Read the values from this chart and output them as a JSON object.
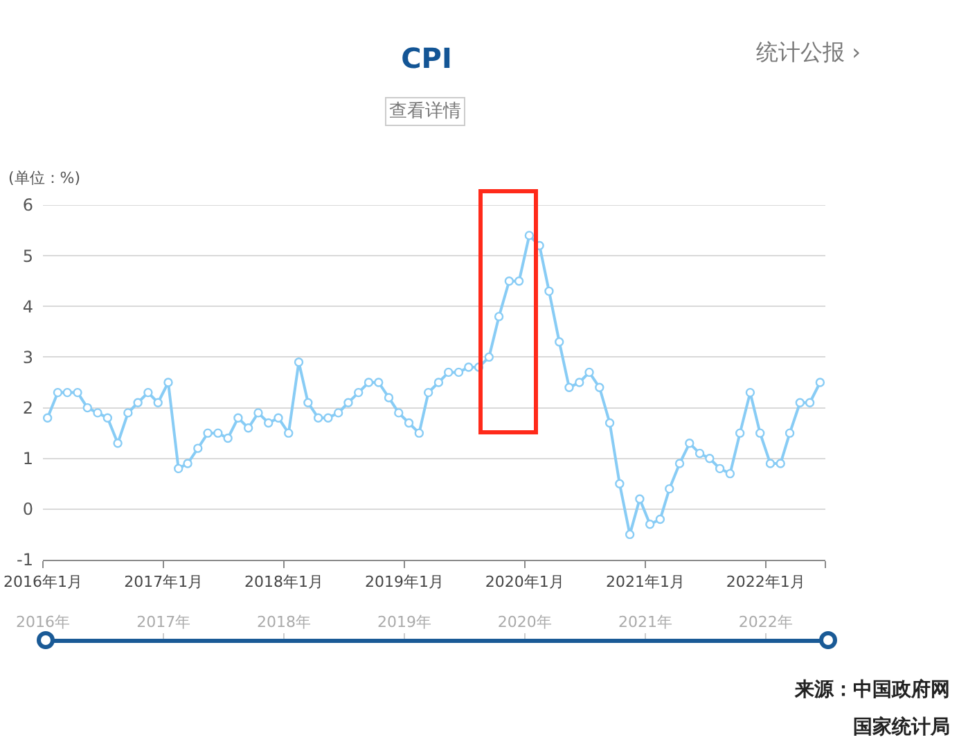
{
  "chart_data": {
    "type": "line",
    "title": "CPI",
    "ylabel": "(单位：%)",
    "annotations": [
      "查看详情",
      "统计公报 ›",
      "来源：中国政府网",
      "国家统计局"
    ],
    "x": [
      "2016-01-15",
      "2016-02-15",
      "2016-03-15",
      "2016-04-15",
      "2016-05-15",
      "2016-06-15",
      "2016-07-15",
      "2016-08-15",
      "2016-09-15",
      "2016-10-15",
      "2016-11-15",
      "2016-12-15",
      "2017-01-15",
      "2017-02-15",
      "2017-03-15",
      "2017-04-15",
      "2017-05-15",
      "2017-06-15",
      "2017-07-15",
      "2017-08-15",
      "2017-09-15",
      "2017-10-15",
      "2017-11-15",
      "2017-12-15",
      "2018-01-15",
      "2018-02-15",
      "2018-03-15",
      "2018-04-15",
      "2018-05-15",
      "2018-06-15",
      "2018-07-15",
      "2018-08-15",
      "2018-09-15",
      "2018-10-15",
      "2018-11-15",
      "2018-12-15",
      "2019-01-15",
      "2019-02-15",
      "2019-03-15",
      "2019-04-15",
      "2019-05-15",
      "2019-06-15",
      "2019-07-15",
      "2019-08-15",
      "2019-09-15",
      "2019-10-15",
      "2019-11-15",
      "2019-12-15",
      "2020-01-15",
      "2020-02-15",
      "2020-03-15",
      "2020-04-15",
      "2020-05-15",
      "2020-06-15",
      "2020-07-15",
      "2020-08-15",
      "2020-09-15",
      "2020-10-15",
      "2020-11-15",
      "2020-12-15",
      "2021-01-15",
      "2021-02-15",
      "2021-03-15",
      "2021-04-15",
      "2021-05-15",
      "2021-06-15",
      "2021-07-15",
      "2021-08-15",
      "2021-09-15",
      "2021-10-15",
      "2021-11-15",
      "2021-12-15",
      "2022-01-15",
      "2022-02-15",
      "2022-03-15",
      "2022-04-15",
      "2022-05-15",
      "2022-06-15"
    ],
    "series": [
      {
        "color": "#88ccf5",
        "values": [
          1.8,
          2.3,
          2.3,
          2.3,
          2.0,
          1.9,
          1.8,
          1.3,
          1.9,
          2.1,
          2.3,
          2.1,
          2.5,
          0.8,
          0.9,
          1.2,
          1.5,
          1.5,
          1.4,
          1.8,
          1.6,
          1.9,
          1.7,
          1.8,
          1.5,
          2.9,
          2.1,
          1.8,
          1.8,
          1.9,
          2.1,
          2.3,
          2.5,
          2.5,
          2.2,
          1.9,
          1.7,
          1.5,
          2.3,
          2.5,
          2.7,
          2.7,
          2.8,
          2.8,
          3.0,
          3.8,
          4.5,
          4.5,
          5.4,
          5.2,
          4.3,
          3.3,
          2.4,
          2.5,
          2.7,
          2.4,
          1.7,
          0.5,
          -0.5,
          0.2,
          -0.3,
          -0.2,
          0.4,
          0.9,
          1.3,
          1.1,
          1.0,
          0.8,
          0.7,
          1.5,
          2.3,
          1.5,
          0.9,
          0.9,
          1.5,
          2.1,
          2.1,
          2.5
        ]
      }
    ],
    "xlim": [
      "2016-01",
      "2022-07"
    ],
    "xticks": [
      {
        "value": "2016-01",
        "label": "2016年1月"
      },
      {
        "value": "2017-01",
        "label": "2017年1月"
      },
      {
        "value": "2018-01",
        "label": "2018年1月"
      },
      {
        "value": "2019-01",
        "label": "2019年1月"
      },
      {
        "value": "2020-01",
        "label": "2020年1月"
      },
      {
        "value": "2021-01",
        "label": "2021年1月"
      },
      {
        "value": "2022-01",
        "label": "2022年1月"
      },
      {
        "value": "2022-07",
        "label": null
      }
    ],
    "x2lim": [
      "2016-01",
      "2022-07"
    ],
    "x2ticks": [
      {
        "value": "2016-01",
        "label": "2016年"
      },
      {
        "value": "2017-01",
        "label": "2017年"
      },
      {
        "value": "2018-01",
        "label": "2018年"
      },
      {
        "value": "2019-01",
        "label": "2019年"
      },
      {
        "value": "2020-01",
        "label": "2020年"
      },
      {
        "value": "2021-01",
        "label": "2021年"
      },
      {
        "value": "2022-01",
        "label": "2022年"
      }
    ],
    "ylim": [
      -1,
      6
    ],
    "yticks": [
      -1,
      0,
      1,
      2,
      3,
      4,
      5,
      6
    ],
    "grid": "y",
    "marker": "circle",
    "line_style": "solid"
  }
}
